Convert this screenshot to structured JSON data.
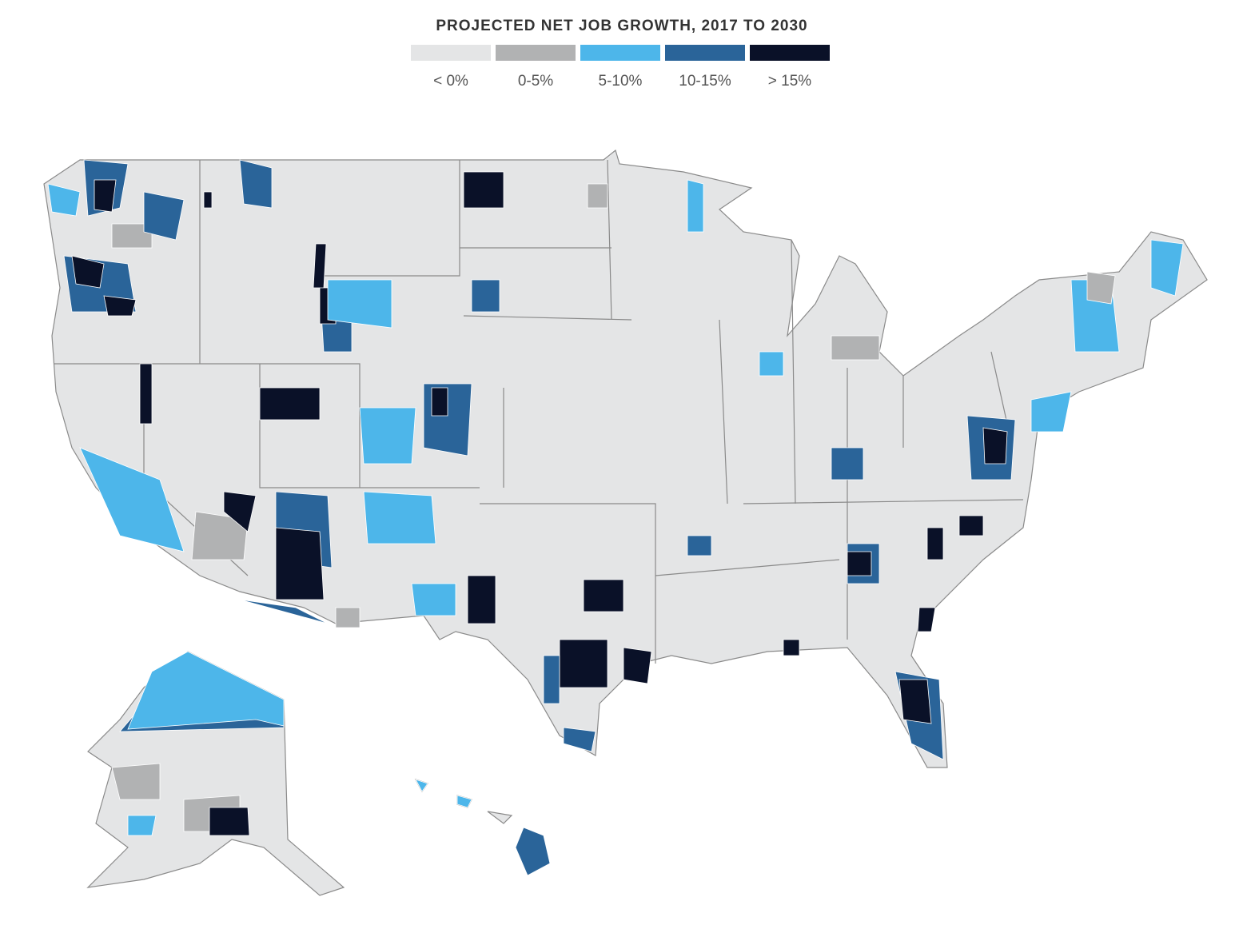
{
  "title": "PROJECTED NET JOB GROWTH, 2017 TO 2030",
  "legend": [
    {
      "label": "< 0%",
      "color": "#e4e5e6"
    },
    {
      "label": "0-5%",
      "color": "#b1b2b3"
    },
    {
      "label": "5-10%",
      "color": "#4db6ea"
    },
    {
      "label": "10-15%",
      "color": "#2a6499"
    },
    {
      "label": "> 15%",
      "color": "#0a1128"
    }
  ]
}
